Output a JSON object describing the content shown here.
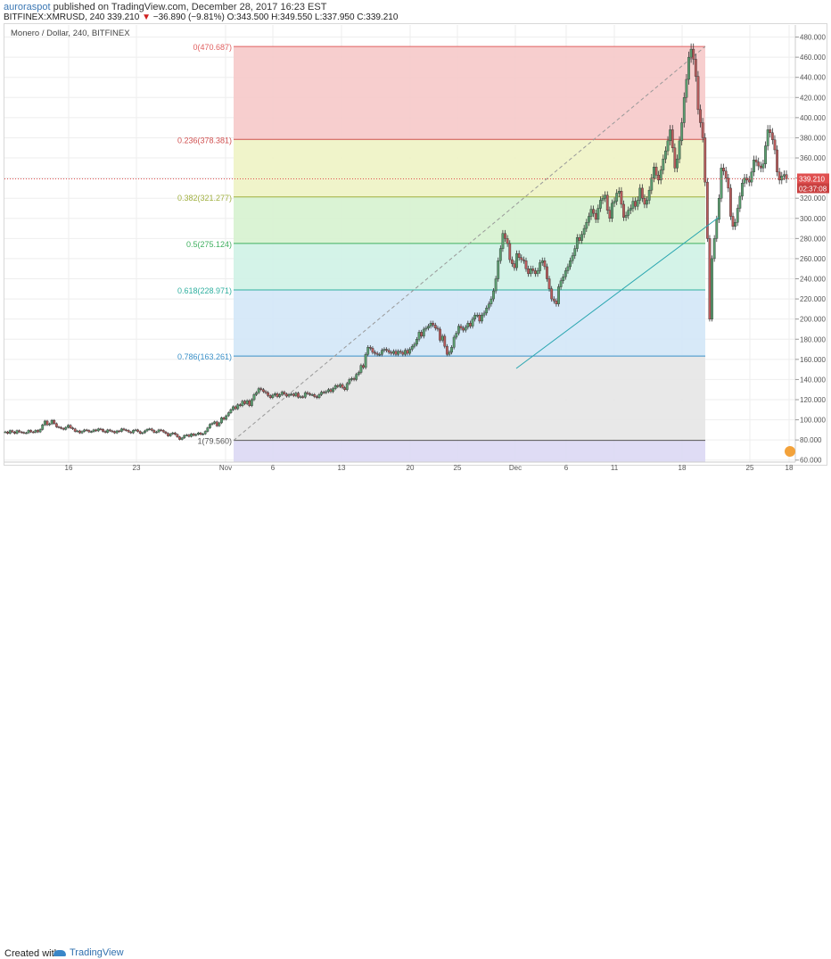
{
  "header": {
    "author": "auroraspot",
    "published_text": "published on TradingView.com, December 28, 2017 16:23 EST",
    "symbol": "BITFINEX:XMRUSD, 240",
    "last": "339.210",
    "change": "−36.890 (−9.81%)",
    "ohlc": "O:343.500 H:349.550 L:337.950 C:339.210",
    "series_title": "Monero / Dollar, 240, BITFINEX"
  },
  "footer": {
    "created": "Created with",
    "brand": "TradingView"
  },
  "colors": {
    "up": "#5a9e6f",
    "down": "#b85b5b",
    "price_line": "#e05050"
  },
  "chart_data": {
    "type": "candlestick",
    "title": "Monero / Dollar, 240, BITFINEX",
    "ylim": [
      58,
      492
    ],
    "y_ticks": [
      "60.000",
      "80.000",
      "100.000",
      "120.000",
      "140.000",
      "160.000",
      "180.000",
      "200.000",
      "220.000",
      "240.000",
      "260.000",
      "280.000",
      "300.000",
      "320.000",
      "340.000",
      "360.000",
      "380.000",
      "400.000",
      "420.000",
      "440.000",
      "460.000",
      "480.000"
    ],
    "x_ticks": [
      "16",
      "23",
      "Nov",
      "6",
      "13",
      "20",
      "25",
      "Dec",
      "6",
      "11",
      "18",
      "25",
      "18"
    ],
    "current_price": {
      "value": 339.21,
      "label": "339.210",
      "countdown": "02:37:08"
    },
    "fibonacci": [
      {
        "level": 0,
        "price": 470.687,
        "label": "0(470.687)",
        "color": "#e06060",
        "fill": "#f6c9c9"
      },
      {
        "level": 0.236,
        "price": 378.381,
        "label": "0.236(378.381)",
        "color": "#d05050",
        "fill": "#eef3c4"
      },
      {
        "level": 0.382,
        "price": 321.277,
        "label": "0.382(321.277)",
        "color": "#a0b040",
        "fill": "#d6f2cf"
      },
      {
        "level": 0.5,
        "price": 275.124,
        "label": "0.5(275.124)",
        "color": "#40b060",
        "fill": "#cff2e6"
      },
      {
        "level": 0.618,
        "price": 228.971,
        "label": "0.618(228.971)",
        "color": "#30b0a0",
        "fill": "#d3e7f7"
      },
      {
        "level": 0.786,
        "price": 163.261,
        "label": "0.786(163.261)",
        "color": "#3a90c8",
        "fill": "#e6e6e6"
      },
      {
        "level": 1,
        "price": 79.56,
        "label": "1(79.560)",
        "color": "#555555",
        "fill": "#dcd8f4"
      }
    ],
    "trendline": {
      "from_price": 151,
      "to_price": 301
    },
    "series": [
      {
        "name": "XMRUSD",
        "close": [
          88.0,
          86.5,
          89.3,
          87.9,
          86.5,
          89.3,
          88.0,
          87.5,
          86.8,
          87.1,
          89.5,
          88.0,
          87.6,
          89.5,
          88.0,
          90.4,
          95.0,
          98.8,
          95.0,
          96.0,
          99.5,
          96.2,
          93.0,
          92.5,
          91.5,
          90.5,
          92.5,
          94.5,
          92.0,
          91.0,
          88.5,
          89.0,
          87.0,
          88.5,
          90.0,
          89.5,
          88.0,
          88.3,
          90.0,
          89.0,
          91.0,
          90.5,
          88.5,
          87.5,
          90.0,
          89.0,
          88.3,
          87.0,
          89.0,
          88.5,
          91.0,
          90.0,
          89.5,
          88.0,
          87.0,
          89.5,
          90.0,
          88.5,
          86.5,
          87.2,
          89.0,
          90.5,
          91.0,
          89.5,
          87.5,
          88.0,
          90.0,
          89.5,
          88.0,
          86.5,
          84.0,
          86.0,
          87.0,
          85.5,
          83.0,
          80.5,
          82.0,
          84.5,
          85.0,
          83.5,
          86.0,
          84.5,
          85.5,
          87.0,
          85.5,
          86.0,
          88.5,
          92.0,
          95.5,
          96.5,
          98.0,
          94.0,
          97.0,
          102.0,
          100.5,
          104.0,
          107.0,
          110.0,
          113.0,
          111.0,
          115.0,
          114.0,
          118.5,
          116.0,
          119.0,
          114.0,
          120.0,
          125.0,
          127.0,
          131.0,
          130.0,
          128.0,
          127.0,
          124.0,
          122.0,
          124.5,
          126.0,
          123.0,
          125.0,
          127.5,
          125.5,
          123.5,
          125.0,
          125.5,
          124.0,
          126.5,
          122.5,
          123.0,
          122.5,
          127.0,
          126.0,
          125.0,
          125.0,
          123.0,
          122.0,
          125.0,
          127.5,
          127.0,
          128.0,
          130.0,
          128.0,
          131.0,
          134.0,
          133.0,
          135.0,
          132.0,
          130.0,
          136.0,
          140.0,
          141.0,
          140.0,
          145.0,
          147.0,
          154.0,
          152.0,
          165.0,
          172.0,
          171.0,
          167.0,
          166.0,
          165.0,
          165.0,
          169.0,
          170.0,
          169.0,
          167.0,
          166.0,
          168.0,
          165.0,
          168.0,
          167.0,
          165.0,
          169.0,
          166.0,
          170.0,
          173.0,
          175.0,
          180.0,
          187.0,
          183.0,
          190.0,
          191.0,
          193.0,
          196.0,
          194.0,
          191.0,
          190.0,
          179.0,
          183.0,
          173.0,
          165.0,
          167.0,
          172.0,
          182.0,
          186.0,
          193.0,
          191.0,
          189.0,
          192.0,
          196.0,
          193.0,
          200.0,
          204.0,
          204.0,
          198.0,
          204.0,
          206.0,
          211.0,
          215.0,
          220.0,
          228.0,
          240.0,
          258.0,
          270.0,
          285.0,
          280.0,
          275.0,
          259.0,
          255.0,
          251.0,
          265.0,
          261.0,
          259.0,
          258.0,
          250.0,
          245.0,
          250.0,
          248.0,
          245.0,
          248.0,
          256.0,
          258.0,
          252.0,
          240.0,
          230.0,
          220.0,
          218.0,
          215.0,
          232.0,
          238.0,
          242.0,
          248.0,
          252.0,
          258.0,
          263.0,
          270.0,
          281.0,
          278.0,
          284.0,
          290.0,
          296.0,
          302.0,
          309.0,
          305.0,
          299.0,
          310.0,
          318.0,
          320.0,
          323.0,
          308.0,
          300.0,
          315.0,
          317.0,
          325.0,
          327.0,
          314.0,
          301.0,
          303.0,
          308.0,
          310.0,
          317.0,
          312.0,
          318.0,
          330.0,
          320.0,
          314.0,
          318.0,
          328.0,
          340.0,
          351.0,
          343.0,
          338.0,
          348.0,
          359.0,
          367.0,
          377.0,
          388.0,
          370.0,
          350.0,
          359.0,
          377.0,
          395.0,
          420.0,
          438.0,
          460.0,
          468.0,
          458.0,
          441.0,
          408.0,
          395.0,
          380.0,
          336.0,
          280.0,
          200.0,
          260.0,
          280.0,
          299.0,
          320.0,
          350.0,
          347.0,
          340.0,
          330.0,
          302.0,
          292.0,
          296.0,
          310.0,
          322.0,
          335.0,
          340.0,
          338.0,
          336.0,
          346.0,
          358.0,
          356.0,
          352.0,
          350.0,
          354.0,
          372.0,
          388.0,
          385.0,
          378.0,
          368.0,
          346.0,
          338.0,
          342.0,
          343.5,
          339.21
        ]
      }
    ]
  }
}
